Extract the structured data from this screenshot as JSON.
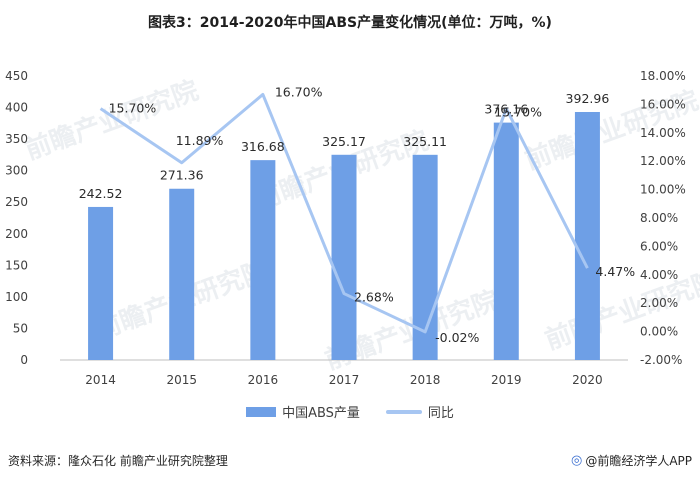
{
  "title": "图表3：2014-2020年中国ABS产量变化情况(单位：万吨，%)",
  "colors": {
    "bar": "#6e9fe6",
    "line": "#a7c6f2"
  },
  "chart_data": {
    "type": "bar",
    "categories": [
      "2014",
      "2015",
      "2016",
      "2017",
      "2018",
      "2019",
      "2020"
    ],
    "series": [
      {
        "name": "中国ABS产量",
        "type": "bar",
        "axis": "left",
        "values": [
          242.52,
          271.36,
          316.68,
          325.17,
          325.11,
          376.16,
          392.96
        ],
        "labels": [
          "242.52",
          "271.36",
          "316.68",
          "325.17",
          "325.11",
          "376.16",
          "392.96"
        ]
      },
      {
        "name": "同比",
        "type": "line",
        "axis": "right",
        "values": [
          15.7,
          11.89,
          16.7,
          2.68,
          -0.02,
          15.7,
          4.47
        ],
        "labels": [
          "15.70%",
          "11.89%",
          "16.70%",
          "2.68%",
          "-0.02%",
          "15.70%",
          "4.47%"
        ]
      }
    ],
    "y_left": {
      "min": 0,
      "max": 450,
      "step": 50,
      "ticks": [
        "0",
        "50",
        "100",
        "150",
        "200",
        "250",
        "300",
        "350",
        "400",
        "450"
      ]
    },
    "y_right": {
      "min": -2,
      "max": 18,
      "step": 2,
      "ticks": [
        "-2.00%",
        "0.00%",
        "2.00%",
        "4.00%",
        "6.00%",
        "8.00%",
        "10.00%",
        "12.00%",
        "14.00%",
        "16.00%",
        "18.00%"
      ]
    },
    "grid": false,
    "legend_position": "bottom"
  },
  "legend": {
    "bar_label": "中国ABS产量",
    "line_label": "同比"
  },
  "footer": {
    "source": "资料来源：隆众石化 前瞻产业研究院整理",
    "brand": "@前瞻经济学人APP"
  },
  "watermark": "前瞻产业研究院"
}
